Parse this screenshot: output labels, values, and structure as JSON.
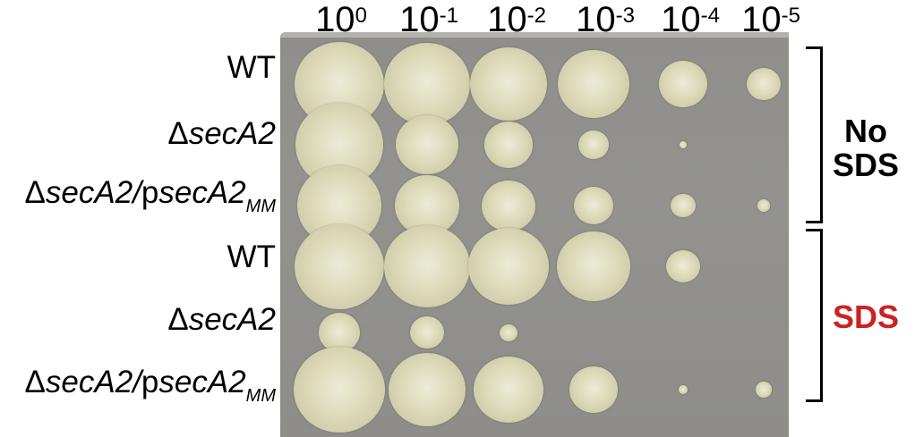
{
  "columns": [
    {
      "base": "10",
      "exp": "0"
    },
    {
      "base": "10",
      "exp": "-1"
    },
    {
      "base": "10",
      "exp": "-2"
    },
    {
      "base": "10",
      "exp": "-3"
    },
    {
      "base": "10",
      "exp": "-4"
    },
    {
      "base": "10",
      "exp": "-5"
    }
  ],
  "rows": [
    {
      "plain": "WT"
    },
    {
      "prefix": "Δ",
      "italic": "secA2"
    },
    {
      "prefix": "Δ",
      "italic": "secA2/",
      "plain2": "p",
      "italic2": "secA2",
      "sub": "MM"
    },
    {
      "plain": "WT"
    },
    {
      "prefix": "Δ",
      "italic": "secA2"
    },
    {
      "prefix": "Δ",
      "italic": "secA2/",
      "plain2": "p",
      "italic2": "secA2",
      "sub": "MM"
    }
  ],
  "groups": [
    {
      "line1": "No",
      "line2": "SDS",
      "color": "#000000"
    },
    {
      "line1": "SDS",
      "line2": "",
      "color": "#cc2222"
    }
  ],
  "colors": {
    "plate": "#8f8e8a",
    "colony": "#dcdab8",
    "colony_center": "#ecebd8"
  }
}
